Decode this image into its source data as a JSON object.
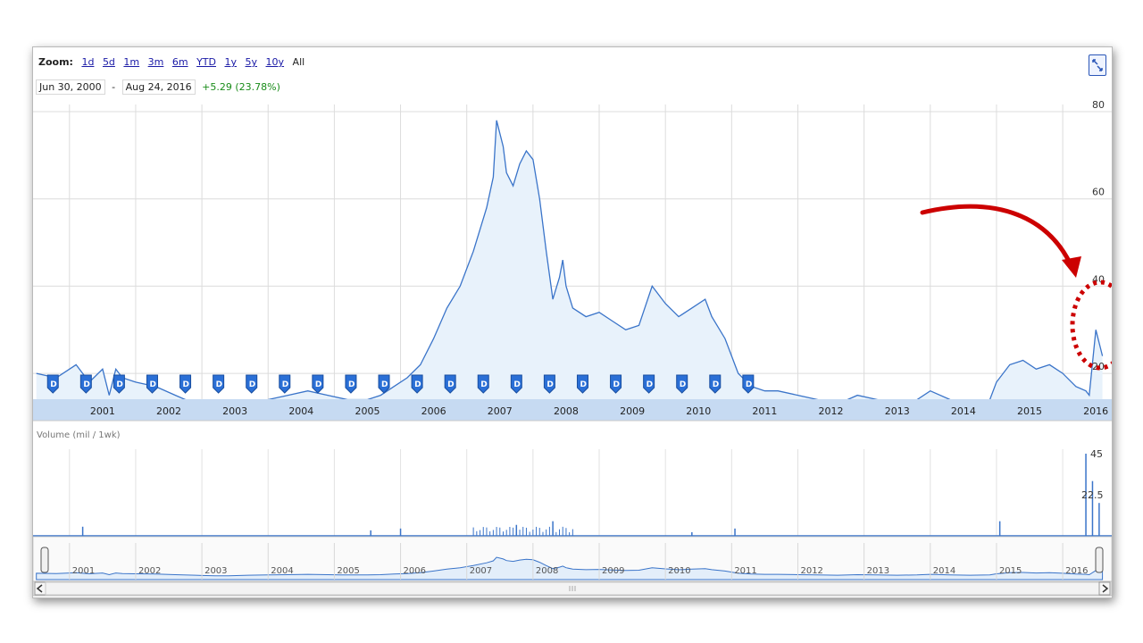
{
  "toolbar": {
    "zoom_label": "Zoom:",
    "zoom_options": [
      "1d",
      "5d",
      "1m",
      "3m",
      "6m",
      "YTD",
      "1y",
      "5y",
      "10y"
    ],
    "zoom_selected": "All",
    "range_start": "Jun 30, 2000",
    "range_separator": "-",
    "range_end": "Aug 24, 2016",
    "change": "+5.29 (23.78%)"
  },
  "volume_label": "Volume (mil / 1wk)",
  "colors": {
    "line": "#3a74c9",
    "fill": "#e8f2fb",
    "axis_band": "#c6daf2",
    "annotation": "#cc0000",
    "change_positive": "#1a8c1a"
  },
  "chart_data": [
    {
      "type": "area",
      "series": [
        {
          "x": [
            2000.5,
            2000.8,
            2001.0,
            2001.1,
            2001.3,
            2001.5,
            2001.6,
            2001.7,
            2001.8,
            2002.0,
            2002.3,
            2002.6,
            2002.9,
            2003.0,
            2003.2,
            2003.4,
            2003.7,
            2004.0,
            2004.3,
            2004.6,
            2004.9,
            2005.2,
            2005.5,
            2005.7,
            2005.9,
            2006.1,
            2006.3,
            2006.5,
            2006.7,
            2006.9,
            2007.1,
            2007.3,
            2007.4,
            2007.45,
            2007.55,
            2007.6,
            2007.7,
            2007.8,
            2007.9,
            2008.0,
            2008.1,
            2008.2,
            2008.3,
            2008.4,
            2008.45,
            2008.5,
            2008.6,
            2008.8,
            2009.0,
            2009.2,
            2009.4,
            2009.6,
            2009.8,
            2010.0,
            2010.2,
            2010.4,
            2010.6,
            2010.7,
            2010.9,
            2011.1,
            2011.3,
            2011.5,
            2011.7,
            2012.0,
            2012.3,
            2012.6,
            2012.9,
            2013.2,
            2013.5,
            2013.8,
            2014.0,
            2014.3,
            2014.6,
            2014.9,
            2015.0,
            2015.2,
            2015.4,
            2015.6,
            2015.8,
            2016.0,
            2016.2,
            2016.35,
            2016.4,
            2016.5,
            2016.6
          ],
          "y": [
            20,
            19,
            21,
            22,
            18,
            21,
            15,
            21,
            19,
            18,
            17,
            15,
            13,
            12,
            11,
            11,
            13,
            14,
            15,
            16,
            15,
            14,
            14,
            15,
            17,
            19,
            22,
            28,
            35,
            40,
            48,
            58,
            65,
            78,
            72,
            66,
            63,
            68,
            71,
            69,
            60,
            48,
            37,
            42,
            46,
            40,
            35,
            33,
            34,
            32,
            30,
            31,
            40,
            36,
            33,
            35,
            37,
            33,
            28,
            20,
            17,
            16,
            16,
            15,
            14,
            13,
            15,
            14,
            13,
            14,
            16,
            14,
            13,
            14,
            18,
            22,
            23,
            21,
            22,
            20,
            17,
            16,
            15,
            30,
            24
          ]
        }
      ],
      "ylim": [
        10,
        80
      ],
      "y_ticks": [
        20,
        40,
        60,
        80
      ],
      "x_ticks": [
        "2001",
        "2002",
        "2003",
        "2004",
        "2005",
        "2006",
        "2007",
        "2008",
        "2009",
        "2010",
        "2011",
        "2012",
        "2013",
        "2014",
        "2015",
        "2016"
      ],
      "dividend_markers": [
        "D",
        "D",
        "D",
        "D",
        "D",
        "D",
        "D",
        "D",
        "D",
        "D",
        "D",
        "D",
        "D",
        "D",
        "D",
        "D",
        "D",
        "D",
        "D",
        "D",
        "D",
        "D"
      ],
      "annotation": "red arrow pointing to circled spike near 2016"
    },
    {
      "type": "bar",
      "label": "Volume (mil / 1wk)",
      "y_ticks": [
        "22.5",
        "45"
      ],
      "ylim": [
        0,
        45
      ]
    },
    {
      "type": "area",
      "x_ticks": [
        "2001",
        "2002",
        "2003",
        "2004",
        "2005",
        "2006",
        "2007",
        "2008",
        "2009",
        "2010",
        "2011",
        "2012",
        "2013",
        "2014",
        "2015",
        "2016"
      ]
    }
  ]
}
